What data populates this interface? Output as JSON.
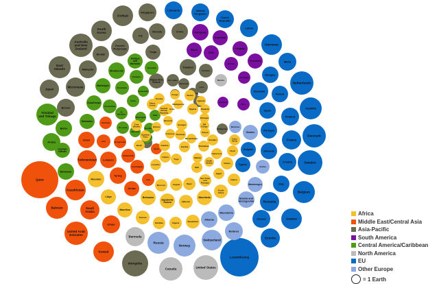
{
  "chart_data": {
    "type": "bubble",
    "legend": {
      "placement": "bottom-right",
      "items": [
        {
          "label": "Africa",
          "color": "#f5c02e"
        },
        {
          "label": "Middle East/Central Asia",
          "color": "#f0520c"
        },
        {
          "label": "Asia-Pacific",
          "color": "#6b6a52"
        },
        {
          "label": "South America",
          "color": "#7a0fa0"
        },
        {
          "label": "Central America/Caribbean",
          "color": "#4f9a17"
        },
        {
          "label": "North America",
          "color": "#bbbbbb"
        },
        {
          "label": "EU",
          "color": "#0a6bc7"
        },
        {
          "label": "Other Europe",
          "color": "#8caae0"
        }
      ],
      "scale_label": "= 1 Earth"
    },
    "bubbles": [
      {
        "label": "Lithuania",
        "group": "EU"
      },
      {
        "label": "United Kingdom",
        "group": "EU"
      },
      {
        "label": "Czech Republic",
        "group": "EU"
      },
      {
        "label": "Latvia",
        "group": "EU"
      },
      {
        "label": "Germany",
        "group": "EU"
      },
      {
        "label": "Malta",
        "group": "EU"
      },
      {
        "label": "Hungary",
        "group": "EU"
      },
      {
        "label": "Netherlands",
        "group": "EU"
      },
      {
        "label": "Poland",
        "group": "EU"
      },
      {
        "label": "Slovakia",
        "group": "EU"
      },
      {
        "label": "Austria",
        "group": "EU"
      },
      {
        "label": "Spain",
        "group": "EU"
      },
      {
        "label": "Finland",
        "group": "EU"
      },
      {
        "label": "Denmark",
        "group": "EU"
      },
      {
        "label": "Portugal",
        "group": "EU"
      },
      {
        "label": "France",
        "group": "EU"
      },
      {
        "label": "Slovenia",
        "group": "EU"
      },
      {
        "label": "Sweden",
        "group": "EU"
      },
      {
        "label": "Croatia",
        "group": "EU"
      },
      {
        "label": "Italy",
        "group": "EU"
      },
      {
        "label": "Belgium",
        "group": "EU"
      },
      {
        "label": "Romania",
        "group": "EU"
      },
      {
        "label": "Greece",
        "group": "EU"
      },
      {
        "label": "Ireland",
        "group": "EU"
      },
      {
        "label": "Estonia",
        "group": "EU"
      },
      {
        "label": "Cyprus",
        "group": "EU"
      },
      {
        "label": "Bulgaria",
        "group": "EU"
      },
      {
        "label": "Luxembourg",
        "group": "EU"
      },
      {
        "label": "Serbia",
        "group": "Other Europe"
      },
      {
        "label": "Montenegro",
        "group": "Other Europe"
      },
      {
        "label": "Bosnia and Herzegovina",
        "group": "Other Europe"
      },
      {
        "label": "Macedonia",
        "group": "Other Europe"
      },
      {
        "label": "Albania",
        "group": "Other Europe"
      },
      {
        "label": "Belarus",
        "group": "Other Europe"
      },
      {
        "label": "Switzerland",
        "group": "Other Europe"
      },
      {
        "label": "Norway",
        "group": "Other Europe"
      },
      {
        "label": "Russia",
        "group": "Other Europe"
      },
      {
        "label": "Ukraine",
        "group": "Other Europe"
      },
      {
        "label": "Moldova",
        "group": "Other Europe"
      },
      {
        "label": "Canada",
        "group": "North America"
      },
      {
        "label": "United States",
        "group": "North America"
      },
      {
        "label": "Bermuda",
        "group": "North America"
      },
      {
        "label": "Mexico",
        "group": "North America"
      },
      {
        "label": "Paraguay",
        "group": "South America"
      },
      {
        "label": "Argentina",
        "group": "South America"
      },
      {
        "label": "Uruguay",
        "group": "South America"
      },
      {
        "label": "Venezuela",
        "group": "South America"
      },
      {
        "label": "Brazil",
        "group": "South America"
      },
      {
        "label": "Chile",
        "group": "South America"
      },
      {
        "label": "Bolivia",
        "group": "South America"
      },
      {
        "label": "Colombia",
        "group": "South America"
      },
      {
        "label": "Peru",
        "group": "South America"
      },
      {
        "label": "Ecuador",
        "group": "South America"
      },
      {
        "label": "Qatar",
        "group": "Middle East/Central Asia"
      },
      {
        "label": "Kazakhstan",
        "group": "Middle East/Central Asia"
      },
      {
        "label": "Bahrain",
        "group": "Middle East/Central Asia"
      },
      {
        "label": "United Arab Emirates",
        "group": "Middle East/Central Asia"
      },
      {
        "label": "Kuwait",
        "group": "Middle East/Central Asia"
      },
      {
        "label": "Saudi Arabia",
        "group": "Middle East/Central Asia"
      },
      {
        "label": "Oman",
        "group": "Middle East/Central Asia"
      },
      {
        "label": "Turkmenistan",
        "group": "Middle East/Central Asia"
      },
      {
        "label": "Lebanon",
        "group": "Middle East/Central Asia"
      },
      {
        "label": "Israel",
        "group": "Middle East/Central Asia"
      },
      {
        "label": "Iran",
        "group": "Middle East/Central Asia"
      },
      {
        "label": "Turkey",
        "group": "Middle East/Central Asia"
      },
      {
        "label": "Jordan",
        "group": "Middle East/Central Asia"
      },
      {
        "label": "Iraq",
        "group": "Middle East/Central Asia"
      },
      {
        "label": "Azerbaijan",
        "group": "Middle East/Central Asia"
      },
      {
        "label": "Uzbekistan",
        "group": "Middle East/Central Asia"
      },
      {
        "label": "Kyrgyzstan",
        "group": "Middle East/Central Asia"
      },
      {
        "label": "Armenia",
        "group": "Middle East/Central Asia"
      },
      {
        "label": "Syria",
        "group": "Middle East/Central Asia"
      },
      {
        "label": "Kiribati",
        "group": "Asia-Pacific"
      },
      {
        "label": "Singapore",
        "group": "Asia-Pacific"
      },
      {
        "label": "South Korea",
        "group": "Asia-Pacific"
      },
      {
        "label": "Australia and New Zealand",
        "group": "Asia-Pacific"
      },
      {
        "label": "Fiji",
        "group": "Asia-Pacific"
      },
      {
        "label": "Vanuatu",
        "group": "Asia-Pacific"
      },
      {
        "label": "China",
        "group": "Asia-Pacific"
      },
      {
        "label": "French Polynesia",
        "group": "Asia-Pacific"
      },
      {
        "label": "Bhutan",
        "group": "Asia-Pacific"
      },
      {
        "label": "Tonga",
        "group": "Asia-Pacific"
      },
      {
        "label": "Mongolia",
        "group": "Asia-Pacific"
      },
      {
        "label": "Thailand",
        "group": "Asia-Pacific"
      },
      {
        "label": "Malaysia",
        "group": "Asia-Pacific"
      },
      {
        "label": "Micronesia",
        "group": "Asia-Pacific"
      },
      {
        "label": "East Islands",
        "group": "Asia-Pacific"
      },
      {
        "label": "Japan",
        "group": "Asia-Pacific"
      },
      {
        "label": "Brunei",
        "group": "Asia-Pacific"
      },
      {
        "label": "Papua New Guinea",
        "group": "Asia-Pacific"
      },
      {
        "label": "Sri Lanka",
        "group": "Asia-Pacific"
      },
      {
        "label": "Myanmar",
        "group": "Asia-Pacific"
      },
      {
        "label": "Laos",
        "group": "Asia-Pacific"
      },
      {
        "label": "Indonesia",
        "group": "Asia-Pacific"
      },
      {
        "label": "Vietnam",
        "group": "Asia-Pacific"
      },
      {
        "label": "India",
        "group": "Asia-Pacific"
      },
      {
        "label": "Samoa",
        "group": "Asia-Pacific"
      },
      {
        "label": "Philippines",
        "group": "Asia-Pacific"
      },
      {
        "label": "Nauru",
        "group": "Asia-Pacific"
      },
      {
        "label": "Trinidad and Tobago",
        "group": "Central America/Caribbean"
      },
      {
        "label": "Belize",
        "group": "Central America/Caribbean"
      },
      {
        "label": "Aruba",
        "group": "Central America/Caribbean"
      },
      {
        "label": "Cayman Islands",
        "group": "Central America/Caribbean"
      },
      {
        "label": "Bahamas",
        "group": "Central America/Caribbean"
      },
      {
        "label": "Barbados",
        "group": "Central America/Caribbean"
      },
      {
        "label": "Grenada",
        "group": "Central America/Caribbean"
      },
      {
        "label": "Panama",
        "group": "Central America/Caribbean"
      },
      {
        "label": "Montserrat",
        "group": "Central America/Caribbean"
      },
      {
        "label": "Antigua and Barbuda",
        "group": "Central America/Caribbean"
      },
      {
        "label": "Martinique",
        "group": "Central America/Caribbean"
      },
      {
        "label": "Guadeloupe",
        "group": "Central America/Caribbean"
      },
      {
        "label": "Costa Rica",
        "group": "Central America/Caribbean"
      },
      {
        "label": "Dominica",
        "group": "Central America/Caribbean"
      },
      {
        "label": "Cuba",
        "group": "Central America/Caribbean"
      },
      {
        "label": "St. Lucia",
        "group": "Central America/Caribbean"
      },
      {
        "label": "Guatemala",
        "group": "Central America/Caribbean"
      },
      {
        "label": "El Salvador",
        "group": "Central America/Caribbean"
      },
      {
        "label": "Honduras",
        "group": "Central America/Caribbean"
      },
      {
        "label": "Nicaragua",
        "group": "Central America/Caribbean"
      },
      {
        "label": "Haiti",
        "group": "Central America/Caribbean"
      },
      {
        "label": "Jamaica",
        "group": "Central America/Caribbean"
      },
      {
        "label": "Dominican Republic",
        "group": "Central America/Caribbean"
      },
      {
        "label": "Guinea",
        "group": "Africa"
      },
      {
        "label": "Guinea-Bissau",
        "group": "Africa"
      },
      {
        "label": "Congo",
        "group": "Africa"
      },
      {
        "label": "Sudan",
        "group": "Africa"
      },
      {
        "label": "Mali",
        "group": "Africa"
      },
      {
        "label": "Nigeria",
        "group": "Africa"
      },
      {
        "label": "Ethiopia",
        "group": "Africa"
      },
      {
        "label": "Madagascar",
        "group": "Africa"
      },
      {
        "label": "Sierra Leone",
        "group": "Africa"
      },
      {
        "label": "Central African Republic",
        "group": "Africa"
      },
      {
        "label": "Kenya",
        "group": "Africa"
      },
      {
        "label": "Liberia",
        "group": "Africa"
      },
      {
        "label": "Senegal",
        "group": "Africa"
      },
      {
        "label": "Cameroon",
        "group": "Africa"
      },
      {
        "label": "Burkina Faso",
        "group": "Africa"
      },
      {
        "label": "Niger",
        "group": "Africa"
      },
      {
        "label": "Benin",
        "group": "Africa"
      },
      {
        "label": "Togo",
        "group": "Africa"
      },
      {
        "label": "Lesotho",
        "group": "Africa"
      },
      {
        "label": "Zambia",
        "group": "Africa"
      },
      {
        "label": "Zimbabwe",
        "group": "Africa"
      },
      {
        "label": "Tanzania",
        "group": "Africa"
      },
      {
        "label": "Uganda",
        "group": "Africa"
      },
      {
        "label": "Morocco",
        "group": "Africa"
      },
      {
        "label": "Botswana",
        "group": "Africa"
      },
      {
        "label": "Equatorial Guinea",
        "group": "Africa"
      },
      {
        "label": "Djibouti",
        "group": "Africa"
      },
      {
        "label": "Mauritania",
        "group": "Africa"
      },
      {
        "label": "Mauritius",
        "group": "Africa"
      },
      {
        "label": "Libya",
        "group": "Africa"
      },
      {
        "label": "Reunion",
        "group": "Africa"
      },
      {
        "label": "Tunisia",
        "group": "Africa"
      },
      {
        "label": "Namibia",
        "group": "Africa"
      },
      {
        "label": "Algeria",
        "group": "Africa"
      },
      {
        "label": "Swaziland",
        "group": "Africa"
      },
      {
        "label": "Angola",
        "group": "Africa"
      },
      {
        "label": "Gambia",
        "group": "Africa"
      },
      {
        "label": "Chad",
        "group": "Africa"
      },
      {
        "label": "Gabon",
        "group": "Africa"
      },
      {
        "label": "Egypt",
        "group": "Africa"
      },
      {
        "label": "South Africa",
        "group": "Africa"
      },
      {
        "label": "Ghana",
        "group": "Africa"
      },
      {
        "label": "South Sudan",
        "group": "Africa"
      },
      {
        "label": "Malawi",
        "group": "Africa"
      },
      {
        "label": "Mozambique",
        "group": "Africa"
      },
      {
        "label": "Rwanda",
        "group": "Africa"
      },
      {
        "label": "Burundi",
        "group": "Africa"
      },
      {
        "label": "Somalia",
        "group": "Africa"
      },
      {
        "label": "Sao Tome and Principe",
        "group": "Africa"
      },
      {
        "label": "Cote d'Ivoire",
        "group": "Africa"
      },
      {
        "label": "Cabo Verde",
        "group": "Africa"
      },
      {
        "label": "DR Congo",
        "group": "Africa"
      },
      {
        "label": "Comoros",
        "group": "Africa"
      },
      {
        "label": "Eritrea",
        "group": "Africa"
      }
    ]
  }
}
